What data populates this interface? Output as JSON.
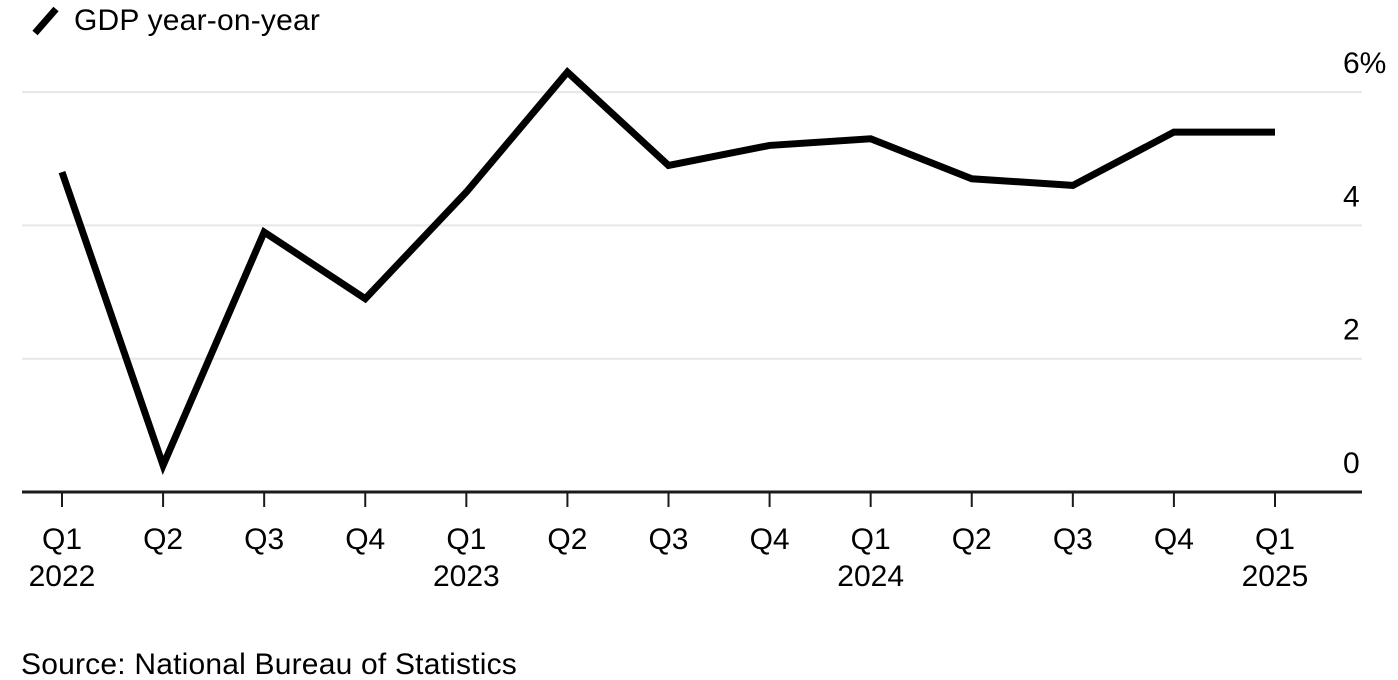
{
  "legend": {
    "label": "GDP year-on-year"
  },
  "source": {
    "text": "Source: National Bureau of Statistics"
  },
  "colors": {
    "line": "#000000",
    "grid": "#e7e7e7",
    "axis": "#1a1a1a",
    "text": "#000000",
    "background": "#ffffff"
  },
  "chart_data": {
    "type": "line",
    "title": "",
    "legend_entries": [
      "GDP year-on-year"
    ],
    "legend_position": "top-left",
    "grid": "horizontal",
    "ylabel": "",
    "xlabel": "",
    "ylim": [
      0,
      6
    ],
    "yticks": [
      {
        "value": 0,
        "label": "0"
      },
      {
        "value": 2,
        "label": "2"
      },
      {
        "value": 4,
        "label": "4"
      },
      {
        "value": 6,
        "label": "6%"
      }
    ],
    "categories": [
      {
        "quarter": "Q1",
        "year": "2022"
      },
      {
        "quarter": "Q2",
        "year": ""
      },
      {
        "quarter": "Q3",
        "year": ""
      },
      {
        "quarter": "Q4",
        "year": ""
      },
      {
        "quarter": "Q1",
        "year": "2023"
      },
      {
        "quarter": "Q2",
        "year": ""
      },
      {
        "quarter": "Q3",
        "year": ""
      },
      {
        "quarter": "Q4",
        "year": ""
      },
      {
        "quarter": "Q1",
        "year": "2024"
      },
      {
        "quarter": "Q2",
        "year": ""
      },
      {
        "quarter": "Q3",
        "year": ""
      },
      {
        "quarter": "Q4",
        "year": ""
      },
      {
        "quarter": "Q1",
        "year": "2025"
      }
    ],
    "series": [
      {
        "name": "GDP year-on-year",
        "values": [
          4.8,
          0.4,
          3.9,
          2.9,
          4.5,
          6.3,
          4.9,
          5.2,
          5.3,
          4.7,
          4.6,
          5.4,
          5.4
        ]
      }
    ]
  }
}
